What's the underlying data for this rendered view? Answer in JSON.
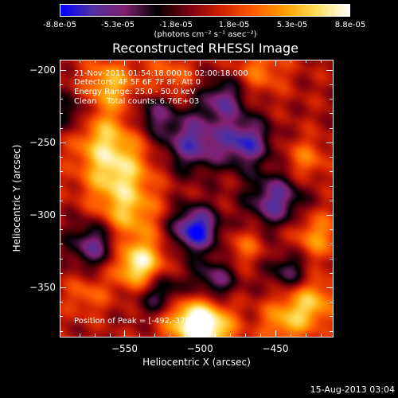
{
  "colorbar": {
    "ticks": [
      "-8.8e-05",
      "-5.3e-05",
      "-1.8e-05",
      "1.8e-05",
      "5.3e-05",
      "8.8e-05"
    ],
    "unit": "(photons cm⁻² s⁻¹ asec⁻²)",
    "stops": [
      "#0000ff",
      "#5030a0",
      "#802070",
      "#000000",
      "#7a0010",
      "#d02000",
      "#ff5a00",
      "#ffa000",
      "#ffe060",
      "#ffffff"
    ]
  },
  "annotations": {
    "time": "21-Nov-2011 01:54:18.000 to 02:00:18.000",
    "detectors": "Detectors: 4F 5F 6F 7F 8F, Att 0",
    "energy": "Energy Range: 25.0 - 50.0 keV",
    "clean": "Clean    Total counts: 6.76E+03",
    "peak": "Position of Peak = [-492,-378]"
  },
  "footer_date": "15-Aug-2013 03:04",
  "chart_data": {
    "type": "heatmap",
    "title": "Reconstructed RHESSI Image",
    "xlabel": "Heliocentric X (arcsec)",
    "ylabel": "Heliocentric Y (arcsec)",
    "xlim": [
      -593,
      -412
    ],
    "ylim": [
      -384,
      -193
    ],
    "xticks": [
      -550,
      -500,
      -450
    ],
    "xtick_labels": [
      "−550",
      "−500",
      "−450"
    ],
    "yticks": [
      -350,
      -300,
      -250,
      -200
    ],
    "ytick_labels": [
      "−350",
      "−300",
      "−250",
      "−200"
    ],
    "zlim": [
      -8.8e-05,
      8.8e-05
    ],
    "grid": false,
    "blobs": [
      {
        "x": -555,
        "y": -270,
        "value": 6.5e-05,
        "size": 16
      },
      {
        "x": -548,
        "y": -300,
        "value": 5e-05,
        "size": 14
      },
      {
        "x": -540,
        "y": -335,
        "value": 8.5e-05,
        "size": 12
      },
      {
        "x": -565,
        "y": -245,
        "value": 4.5e-05,
        "size": 14
      },
      {
        "x": -560,
        "y": -210,
        "value": 5.5e-05,
        "size": 12
      },
      {
        "x": -520,
        "y": -205,
        "value": 3e-05,
        "size": 12
      },
      {
        "x": -495,
        "y": -378,
        "value": 8.8e-05,
        "size": 12
      },
      {
        "x": -512,
        "y": -370,
        "value": 6e-05,
        "size": 12
      },
      {
        "x": -428,
        "y": -360,
        "value": 6e-05,
        "size": 13
      },
      {
        "x": -445,
        "y": -375,
        "value": 4e-05,
        "size": 11
      },
      {
        "x": -423,
        "y": -315,
        "value": 4.5e-05,
        "size": 12
      },
      {
        "x": -430,
        "y": -262,
        "value": 3.5e-05,
        "size": 10
      },
      {
        "x": -460,
        "y": -200,
        "value": 3.5e-05,
        "size": 12
      },
      {
        "x": -470,
        "y": -322,
        "value": 3e-05,
        "size": 9
      },
      {
        "x": -575,
        "y": -355,
        "value": 3e-05,
        "size": 10
      },
      {
        "x": -505,
        "y": -250,
        "value": -6.5e-05,
        "size": 14
      },
      {
        "x": -503,
        "y": -310,
        "value": -8.8e-05,
        "size": 11
      },
      {
        "x": -470,
        "y": -250,
        "value": -7e-05,
        "size": 12
      },
      {
        "x": -525,
        "y": -355,
        "value": -6e-05,
        "size": 12
      },
      {
        "x": -570,
        "y": -320,
        "value": -6e-05,
        "size": 12
      },
      {
        "x": -450,
        "y": -290,
        "value": -6.5e-05,
        "size": 13
      },
      {
        "x": -485,
        "y": -220,
        "value": -5.5e-05,
        "size": 11
      },
      {
        "x": -440,
        "y": -340,
        "value": -5e-05,
        "size": 11
      },
      {
        "x": -490,
        "y": -345,
        "value": -5e-05,
        "size": 10
      },
      {
        "x": -585,
        "y": -230,
        "value": -4e-05,
        "size": 10
      },
      {
        "x": -530,
        "y": -230,
        "value": -4.5e-05,
        "size": 10
      }
    ]
  }
}
